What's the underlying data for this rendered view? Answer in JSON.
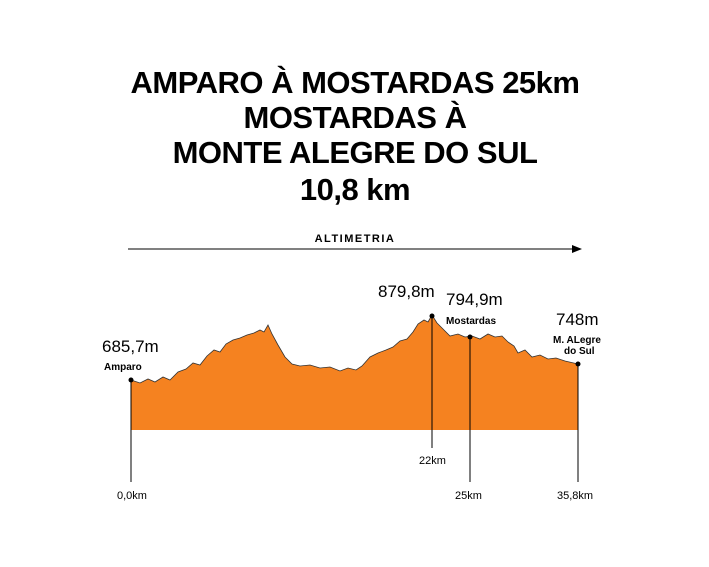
{
  "header": {
    "title": [
      "AMPARO À MOSTARDAS 25km",
      "MOSTARDAS À",
      "MONTE ALEGRE DO SUL",
      "10,8 km"
    ]
  },
  "axis_label": "ALTIMETRIA",
  "points": [
    {
      "elevation": "685,7m",
      "name": "Amparo",
      "distance": "0,0km"
    },
    {
      "elevation": "879,8m",
      "distance": "22km"
    },
    {
      "elevation": "794,9m",
      "name": "Mostardas",
      "distance": "25km"
    },
    {
      "elevation": "748m",
      "name": [
        "M. ALegre",
        "do Sul"
      ],
      "distance": "35,8km"
    }
  ]
}
